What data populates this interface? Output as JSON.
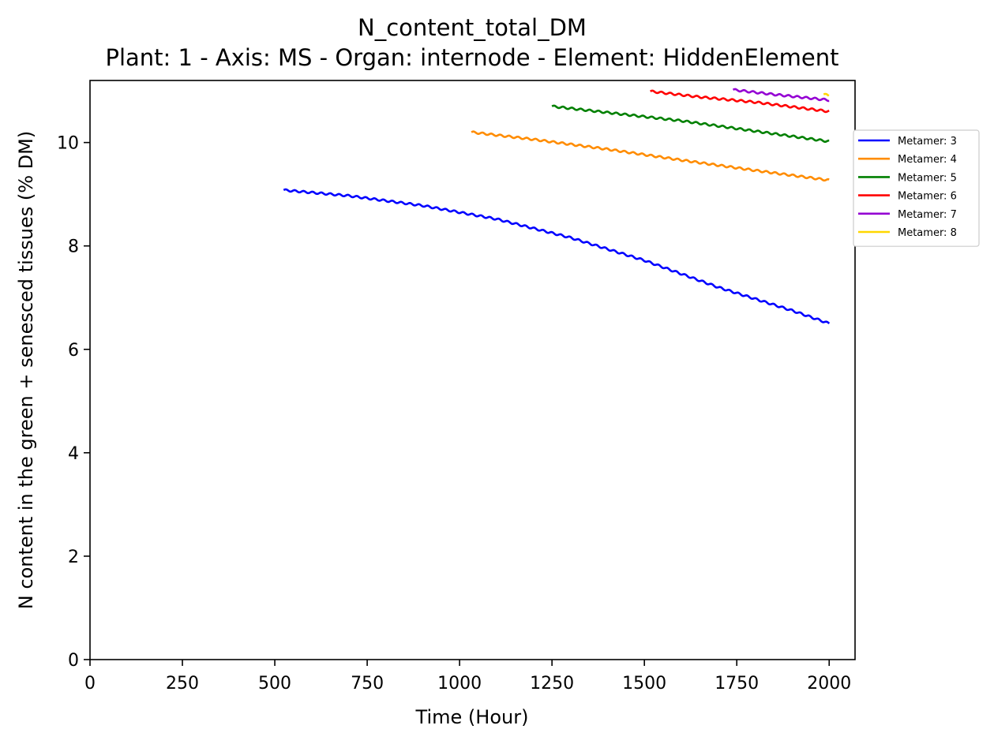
{
  "chart_data": {
    "type": "line",
    "title": "N_content_total_DM",
    "subtitle": "Plant: 1 - Axis: MS - Organ: internode - Element: HiddenElement",
    "xlabel": "Time (Hour)",
    "ylabel": "N content in the green + senesced tissues (% DM)",
    "xlim": [
      0,
      2070
    ],
    "ylim": [
      0,
      11.2
    ],
    "xticks": [
      0,
      250,
      500,
      750,
      1000,
      1250,
      1500,
      1750,
      2000
    ],
    "yticks": [
      0,
      2,
      4,
      6,
      8,
      10
    ],
    "grid": false,
    "legend_position": "right, outside plot near top",
    "series": [
      {
        "name": "Metamer: 3",
        "color": "#0000ff",
        "x": [
          524,
          700,
          900,
          1100,
          1300,
          1500,
          1700,
          1900,
          2000
        ],
        "y": [
          9.08,
          8.97,
          8.78,
          8.52,
          8.16,
          7.72,
          7.2,
          6.75,
          6.5
        ]
      },
      {
        "name": "Metamer: 4",
        "color": "#ff8c00",
        "x": [
          1032,
          1200,
          1400,
          1600,
          1800,
          2000
        ],
        "y": [
          10.2,
          10.06,
          9.87,
          9.66,
          9.46,
          9.27
        ]
      },
      {
        "name": "Metamer: 5",
        "color": "#008000",
        "x": [
          1250,
          1400,
          1600,
          1800,
          2000
        ],
        "y": [
          10.7,
          10.58,
          10.42,
          10.22,
          10.02
        ]
      },
      {
        "name": "Metamer: 6",
        "color": "#ff0000",
        "x": [
          1516,
          1650,
          1800,
          2000
        ],
        "y": [
          10.99,
          10.88,
          10.78,
          10.6
        ]
      },
      {
        "name": "Metamer: 7",
        "color": "#9400d3",
        "x": [
          1740,
          1850,
          2000
        ],
        "y": [
          11.02,
          10.93,
          10.82
        ]
      },
      {
        "name": "Metamer: 8",
        "color": "#ffd700",
        "x": [
          1985,
          2000
        ],
        "y": [
          10.93,
          10.91
        ]
      }
    ]
  }
}
